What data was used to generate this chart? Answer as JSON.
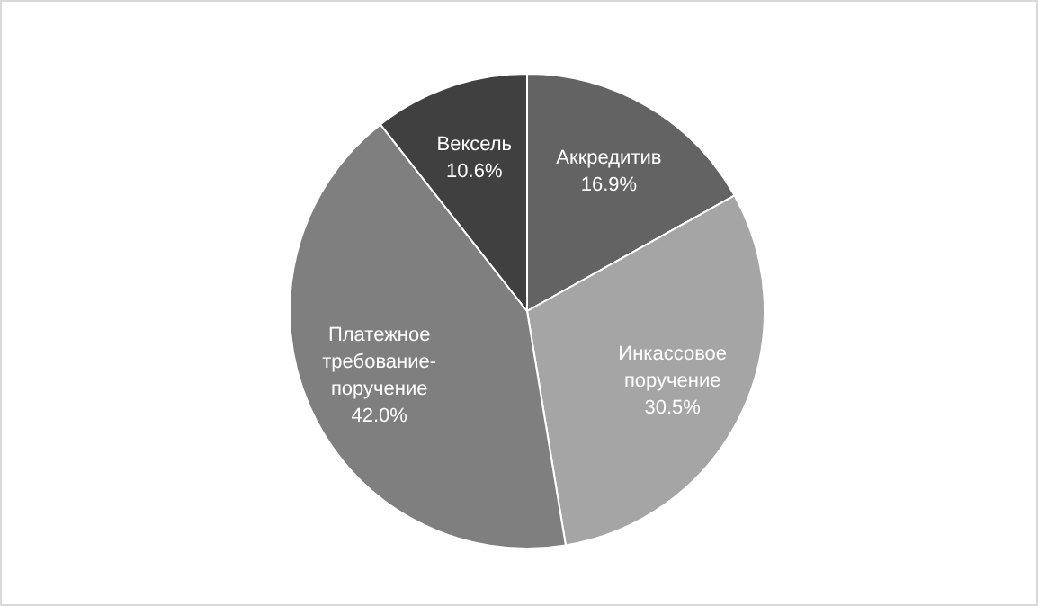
{
  "chart_data": {
    "type": "pie",
    "categories": [
      "Аккредитив",
      "Инкассовое поручение",
      "Платежное требование-поручение",
      "Вексель"
    ],
    "values": [
      16.9,
      30.5,
      42.0,
      10.6
    ],
    "value_labels": [
      "16.9%",
      "30.5%",
      "42.0%",
      "10.6%"
    ],
    "colors": [
      "#636363",
      "#a5a5a5",
      "#7f7f7f",
      "#404040"
    ]
  }
}
